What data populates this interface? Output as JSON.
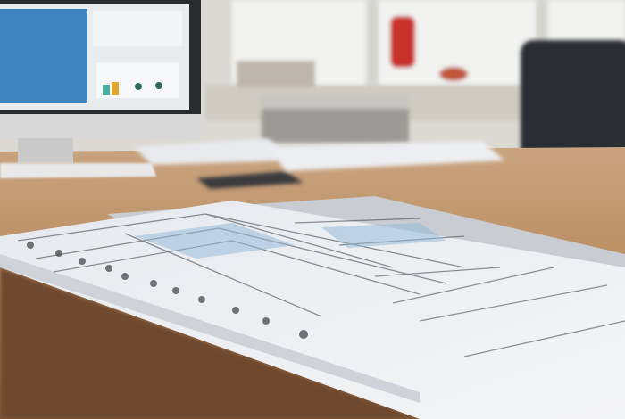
{
  "scene": {
    "description_colors": {
      "wall": "#e4e2dd",
      "window": "#f3f4f2",
      "desk_wood": "#b98a5e",
      "desk_edge": "#7a5232",
      "paper": "#eef0f2",
      "paper_shadow": "#c9ccd2",
      "monitor_frame": "#2a2b2e",
      "monitor_screen": "#3e83c0",
      "chair": "#2b2d31",
      "vase": "#c8302c"
    }
  }
}
